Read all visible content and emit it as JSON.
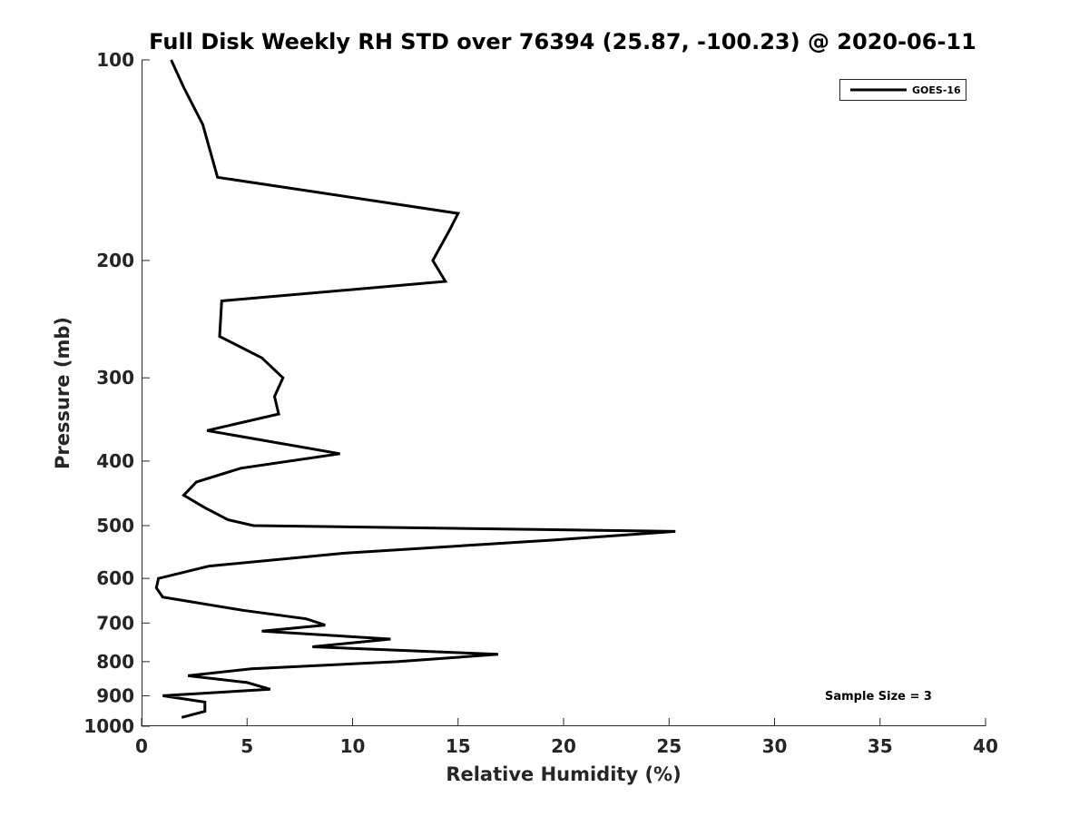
{
  "chart_data": {
    "type": "line",
    "title": "Full Disk Weekly RH STD over 76394 (25.87, -100.23) @ 2020-06-11",
    "xlabel": "Relative Humidity (%)",
    "ylabel": "Pressure (mb)",
    "xlim": [
      0,
      40
    ],
    "ylim": [
      100,
      1000
    ],
    "y_scale": "log",
    "y_reversed": true,
    "grid": false,
    "legend_position": "top-right",
    "x_ticks": [
      0,
      5,
      10,
      15,
      20,
      25,
      30,
      35,
      40
    ],
    "y_ticks": [
      100,
      200,
      300,
      400,
      500,
      600,
      700,
      800,
      900,
      1000
    ],
    "annotation": "Sample Size = 3",
    "series": [
      {
        "name": "GOES-16",
        "color": "#000000",
        "points": [
          [
            1.4,
            100
          ],
          [
            2.0,
            110
          ],
          [
            2.9,
            125
          ],
          [
            3.6,
            150
          ],
          [
            15.0,
            170
          ],
          [
            14.6,
            180
          ],
          [
            13.8,
            200
          ],
          [
            14.4,
            215
          ],
          [
            3.8,
            230
          ],
          [
            3.7,
            260
          ],
          [
            5.7,
            280
          ],
          [
            6.7,
            300
          ],
          [
            6.3,
            320
          ],
          [
            6.5,
            340
          ],
          [
            3.1,
            360
          ],
          [
            9.4,
            390
          ],
          [
            4.7,
            410
          ],
          [
            2.6,
            430
          ],
          [
            2.0,
            450
          ],
          [
            3.0,
            470
          ],
          [
            4.1,
            490
          ],
          [
            5.3,
            500
          ],
          [
            25.3,
            510
          ],
          [
            19.7,
            525
          ],
          [
            9.6,
            550
          ],
          [
            3.2,
            575
          ],
          [
            0.8,
            600
          ],
          [
            0.7,
            620
          ],
          [
            1.0,
            640
          ],
          [
            4.8,
            670
          ],
          [
            7.8,
            690
          ],
          [
            8.7,
            705
          ],
          [
            5.7,
            720
          ],
          [
            11.8,
            740
          ],
          [
            8.1,
            760
          ],
          [
            16.9,
            780
          ],
          [
            12.1,
            800
          ],
          [
            5.2,
            820
          ],
          [
            2.2,
            840
          ],
          [
            5.0,
            860
          ],
          [
            6.1,
            880
          ],
          [
            1.0,
            900
          ],
          [
            3.0,
            920
          ],
          [
            3.0,
            950
          ],
          [
            1.9,
            970
          ]
        ]
      }
    ]
  }
}
